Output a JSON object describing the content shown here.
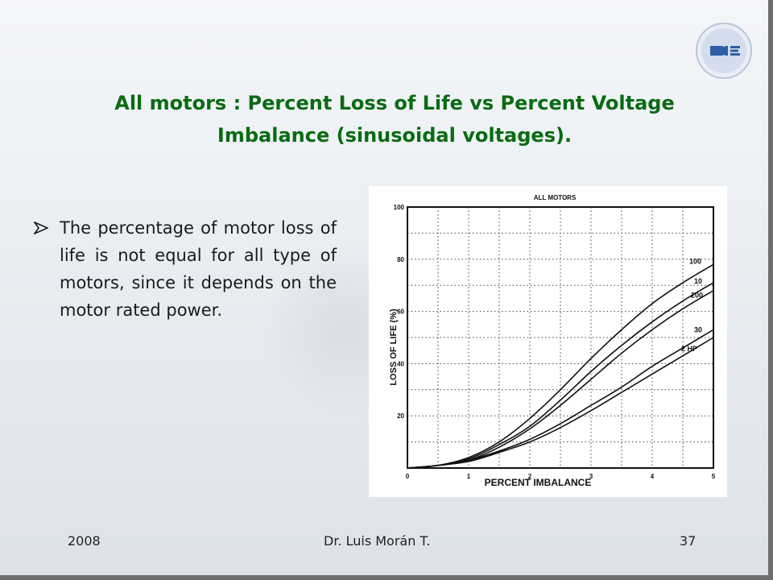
{
  "slide": {
    "title": "All motors : Percent Loss of Life vs Percent Voltage Imbalance (sinusoidal voltages).",
    "bullet": "The percentage of motor loss of life is not equal for all type of motors, since it depends on the motor rated power.",
    "logo_text": "DIE",
    "colors": {
      "title": "#0a6b12",
      "logo_blue": "#2f5fa8"
    }
  },
  "footer": {
    "year": "2008",
    "author": "Dr. Luis Morán T.",
    "page": "37"
  },
  "chart_data": {
    "type": "line",
    "title": "ALL MOTORS",
    "xlabel": "PERCENT IMBALANCE",
    "ylabel": "LOSS OF LIFE (%)",
    "xlim": [
      0,
      5
    ],
    "ylim": [
      0,
      100
    ],
    "x_ticks": [
      "0",
      "1",
      "2",
      "3",
      "4",
      "5"
    ],
    "y_ticks": [
      "20",
      "40",
      "60",
      "80",
      "100"
    ],
    "grid": true,
    "series": [
      {
        "name": "100",
        "x": [
          0,
          0.5,
          1,
          1.5,
          2,
          2.5,
          3,
          3.5,
          4,
          4.5,
          5
        ],
        "y": [
          0,
          1,
          4,
          10,
          19,
          30,
          42,
          53,
          63,
          71,
          78
        ]
      },
      {
        "name": "10",
        "x": [
          0,
          0.5,
          1,
          1.5,
          2,
          2.5,
          3,
          3.5,
          4,
          4.5,
          5
        ],
        "y": [
          0,
          1,
          3.5,
          9,
          16,
          26,
          37,
          47,
          56,
          64,
          71
        ]
      },
      {
        "name": "200",
        "x": [
          0,
          0.5,
          1,
          1.5,
          2,
          2.5,
          3,
          3.5,
          4,
          4.5,
          5
        ],
        "y": [
          0,
          1,
          3,
          8,
          15,
          24,
          34,
          44,
          53,
          61,
          68
        ]
      },
      {
        "name": "30",
        "x": [
          0,
          0.5,
          1,
          1.5,
          2,
          2.5,
          3,
          3.5,
          4,
          4.5,
          5
        ],
        "y": [
          0,
          1,
          3,
          6.5,
          11,
          17,
          24,
          31,
          39,
          46,
          53
        ]
      },
      {
        "name": "2 HP",
        "x": [
          0,
          0.5,
          1,
          1.5,
          2,
          2.5,
          3,
          3.5,
          4,
          4.5,
          5
        ],
        "y": [
          0,
          1,
          2.5,
          6,
          10,
          15.5,
          22,
          29,
          36,
          43,
          50
        ]
      }
    ]
  }
}
